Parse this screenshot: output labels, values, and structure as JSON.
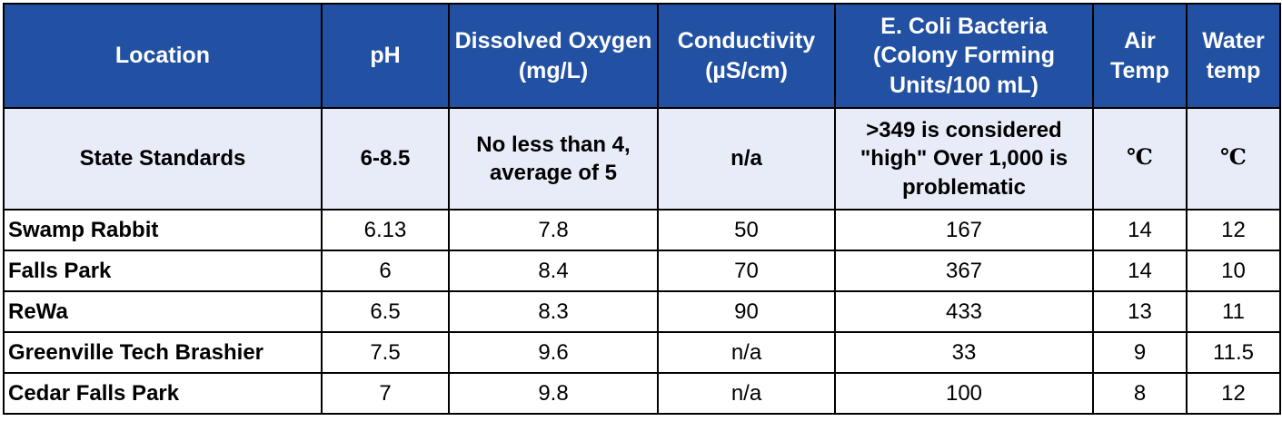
{
  "table": {
    "header": [
      "Location",
      "pH",
      "Dissolved Oxygen (mg/L)",
      "Conductivity (µS/cm)",
      "E. Coli Bacteria (Colony Forming Units/100 mL)",
      "Air Temp",
      "Water temp"
    ],
    "standards": [
      "State Standards",
      "6-8.5",
      "No less than 4, average of 5",
      "n/a",
      ">349 is considered \"high\" Over 1,000 is problematic",
      "℃",
      "℃"
    ],
    "rows": [
      [
        "Swamp Rabbit",
        6.13,
        7.8,
        50,
        167,
        14,
        12
      ],
      [
        "Falls Park",
        6,
        8.4,
        70,
        367,
        14,
        10
      ],
      [
        "ReWa",
        6.5,
        8.3,
        90,
        433,
        13,
        11
      ],
      [
        "Greenville Tech Brashier",
        7.5,
        9.6,
        "n/a",
        33,
        9,
        11.5
      ],
      [
        "Cedar Falls Park",
        7,
        9.8,
        "n/a",
        100,
        8,
        12
      ]
    ]
  }
}
